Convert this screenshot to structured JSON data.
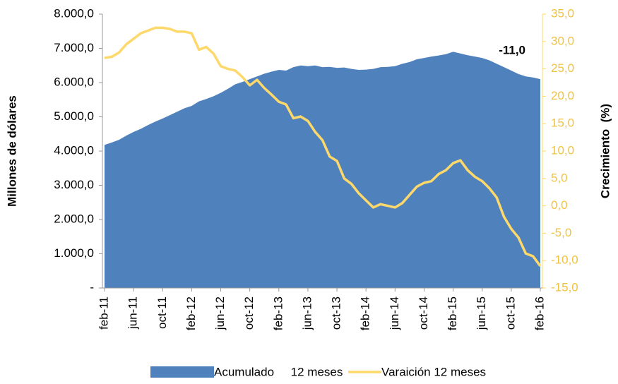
{
  "chart_data": {
    "type": "area-line",
    "categories": [
      "feb-11",
      null,
      null,
      null,
      "jun-11",
      null,
      null,
      null,
      "oct-11",
      null,
      null,
      null,
      "feb-12",
      null,
      null,
      null,
      "jun-12",
      null,
      null,
      null,
      "oct-12",
      null,
      null,
      null,
      "feb-13",
      null,
      null,
      null,
      "jun-13",
      null,
      null,
      null,
      "oct-13",
      null,
      null,
      null,
      "feb-14",
      null,
      null,
      null,
      "jun-14",
      null,
      null,
      null,
      "oct-14",
      null,
      null,
      null,
      "feb-15",
      null,
      null,
      null,
      "jun-15",
      null,
      null,
      null,
      "oct-15",
      null,
      null,
      null,
      "feb-16"
    ],
    "series": [
      {
        "name": "Acumulado     12 meses",
        "color": "#4f81bd",
        "kind": "area",
        "axis": "y",
        "values": [
          4180,
          4250,
          4330,
          4450,
          4560,
          4650,
          4760,
          4860,
          4950,
          5050,
          5150,
          5250,
          5320,
          5450,
          5520,
          5600,
          5700,
          5820,
          5950,
          6020,
          6100,
          6180,
          6260,
          6320,
          6370,
          6350,
          6450,
          6500,
          6480,
          6500,
          6450,
          6460,
          6430,
          6440,
          6400,
          6370,
          6380,
          6400,
          6450,
          6460,
          6480,
          6550,
          6600,
          6680,
          6720,
          6760,
          6790,
          6830,
          6900,
          6850,
          6800,
          6760,
          6720,
          6650,
          6550,
          6450,
          6350,
          6250,
          6180,
          6150,
          6100
        ]
      },
      {
        "name": "Varaición 12 meses",
        "color": "#fdd86a",
        "kind": "line",
        "axis": "y2",
        "values": [
          27,
          27.2,
          28,
          29.5,
          30.5,
          31.5,
          32,
          32.5,
          32.5,
          32.3,
          31.8,
          31.8,
          31.5,
          28.5,
          29,
          27.8,
          25.5,
          25,
          24.7,
          23.5,
          22,
          23,
          21.5,
          20.3,
          19,
          18.5,
          16,
          16.3,
          15.5,
          13.5,
          12,
          9,
          8.2,
          5,
          4,
          2.3,
          1,
          -0.3,
          0.3,
          0,
          -0.3,
          0.5,
          2,
          3.5,
          4.2,
          4.5,
          5.8,
          6.5,
          7.8,
          8.3,
          6.5,
          5.3,
          4.5,
          3.2,
          1.5,
          -2,
          -4.2,
          -5.8,
          -8.7,
          -9.2,
          -11
        ]
      }
    ],
    "annotation": "-11,0",
    "ylabel": "Millones de dólares",
    "y2label": "Crecimiento  (%)",
    "ylim": [
      0,
      8000
    ],
    "yticks": [
      {
        "value": 0,
        "label": "-"
      },
      {
        "value": 1000,
        "label": "1.000,0"
      },
      {
        "value": 2000,
        "label": "2.000,0"
      },
      {
        "value": 3000,
        "label": "3.000,0"
      },
      {
        "value": 4000,
        "label": "4.000,0"
      },
      {
        "value": 5000,
        "label": "5.000,0"
      },
      {
        "value": 6000,
        "label": "6.000,0"
      },
      {
        "value": 7000,
        "label": "7.000,0"
      },
      {
        "value": 8000,
        "label": "8.000,0"
      }
    ],
    "y2lim": [
      -15,
      35
    ],
    "y2ticks": [
      {
        "value": -15,
        "label": "-15,0"
      },
      {
        "value": -10,
        "label": "-10,0"
      },
      {
        "value": -5,
        "label": "-5,0"
      },
      {
        "value": 0,
        "label": "0,0"
      },
      {
        "value": 5,
        "label": "5,0"
      },
      {
        "value": 10,
        "label": "10,0"
      },
      {
        "value": 15,
        "label": "15,0"
      },
      {
        "value": 20,
        "label": "20,0"
      },
      {
        "value": 25,
        "label": "25,0"
      },
      {
        "value": 30,
        "label": "30,0"
      },
      {
        "value": 35,
        "label": "35,0"
      }
    ],
    "legend": "bottom"
  }
}
